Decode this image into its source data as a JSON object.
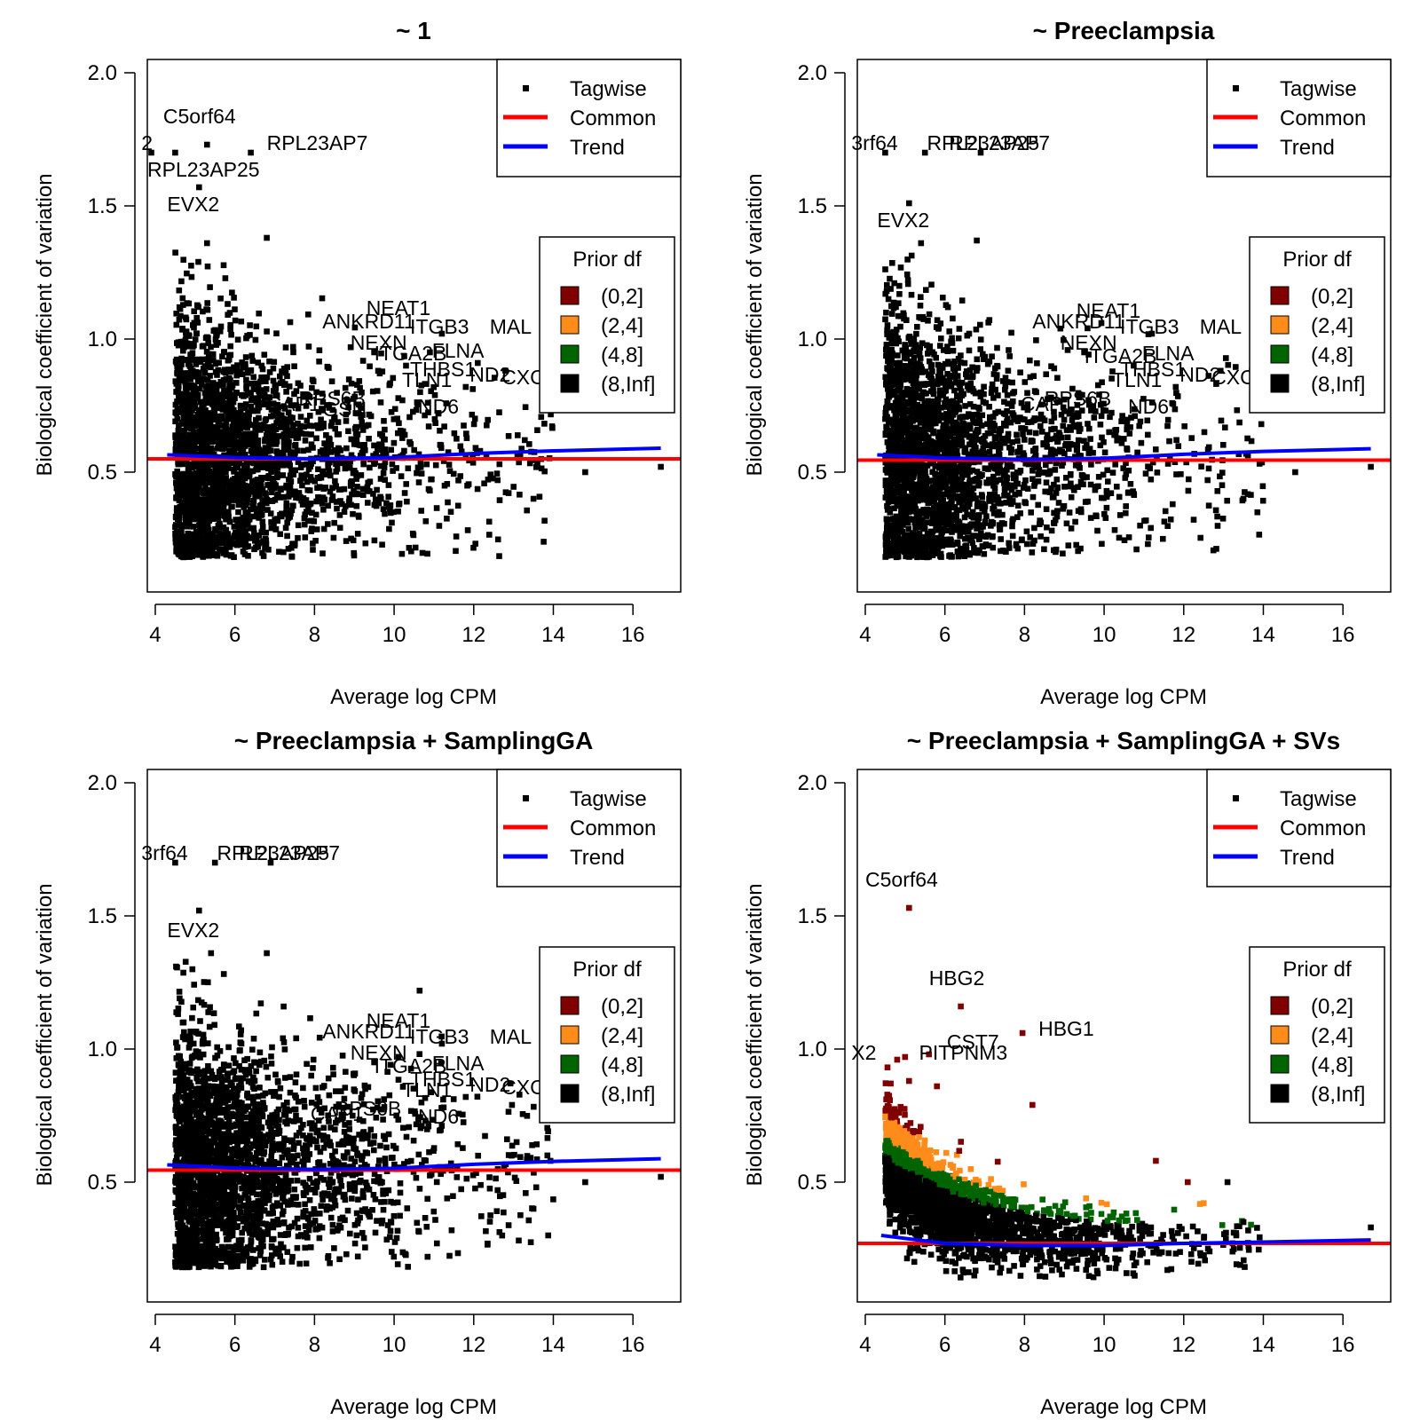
{
  "chart_data": [
    {
      "type": "scatter",
      "title": "~ 1",
      "xlabel": "Average log CPM",
      "ylabel": "Biological coefficient of variation",
      "xlim": [
        3.8,
        17.2
      ],
      "ylim": [
        0.05,
        2.05
      ],
      "xticks": [
        4,
        6,
        8,
        10,
        12,
        14,
        16
      ],
      "yticks": [
        0.5,
        1.0,
        1.5,
        2.0
      ],
      "ytick_labels": [
        "0.5",
        "1.0",
        "1.5",
        "2.0"
      ],
      "common": 0.55,
      "trend": [
        [
          4.3,
          0.565
        ],
        [
          6,
          0.555
        ],
        [
          8,
          0.55
        ],
        [
          10,
          0.555
        ],
        [
          12,
          0.57
        ],
        [
          14,
          0.58
        ],
        [
          16.7,
          0.59
        ]
      ],
      "tagwise_cloud": {
        "seed": 11,
        "mode": "early"
      },
      "outliers": [
        [
          5.3,
          1.73
        ],
        [
          4.5,
          1.7
        ],
        [
          6.4,
          1.7
        ],
        [
          3.9,
          1.7
        ],
        [
          5.1,
          1.57
        ],
        [
          5.3,
          1.36
        ],
        [
          6.8,
          1.38
        ],
        [
          9.5,
          0.95
        ],
        [
          10.3,
          0.9
        ],
        [
          11.2,
          1.02
        ],
        [
          10.9,
          0.95
        ],
        [
          11.8,
          0.82
        ],
        [
          12.1,
          0.91
        ],
        [
          14.8,
          0.5
        ],
        [
          16.7,
          0.52
        ],
        [
          13.5,
          0.4
        ],
        [
          12.6,
          0.47
        ]
      ],
      "gene_labels": [
        {
          "text": "C5orf64",
          "x": 4.2,
          "y": 1.81
        },
        {
          "text": "RPL23AP7",
          "x": 6.8,
          "y": 1.71
        },
        {
          "text": "RPL23AP25",
          "x": 3.8,
          "y": 1.61
        },
        {
          "text": "2",
          "x": 3.65,
          "y": 1.71
        },
        {
          "text": "EVX2",
          "x": 4.3,
          "y": 1.48
        },
        {
          "text": "NEAT1",
          "x": 9.3,
          "y": 1.09
        },
        {
          "text": "ANKRD11",
          "x": 8.2,
          "y": 1.04
        },
        {
          "text": "ITGB3",
          "x": 10.4,
          "y": 1.02
        },
        {
          "text": "MAL",
          "x": 12.4,
          "y": 1.02
        },
        {
          "text": "NEXN",
          "x": 8.9,
          "y": 0.96
        },
        {
          "text": "FLNA",
          "x": 10.95,
          "y": 0.93
        },
        {
          "text": "ITGA2B",
          "x": 9.5,
          "y": 0.92
        },
        {
          "text": "THBS1",
          "x": 10.4,
          "y": 0.86
        },
        {
          "text": "ND2",
          "x": 11.9,
          "y": 0.84
        },
        {
          "text": "TLN1",
          "x": 10.2,
          "y": 0.82
        },
        {
          "text": "CXCL",
          "x": 12.7,
          "y": 0.83
        },
        {
          "text": "RPS6B",
          "x": 7.6,
          "y": 0.75
        },
        {
          "text": "CAP1",
          "x": 6.8,
          "y": 0.73
        },
        {
          "text": "GSN",
          "x": 8.2,
          "y": 0.71
        },
        {
          "text": "ND6",
          "x": 10.6,
          "y": 0.72
        }
      ],
      "legend": {
        "entries": [
          "Tagwise",
          "Common",
          "Trend"
        ],
        "prior_title": "Prior df",
        "prior_entries": [
          "(0,2]",
          "(2,4]",
          "(4,8]",
          "(8,Inf]"
        ]
      }
    },
    {
      "type": "scatter",
      "title": "~ Preeclampsia",
      "xlabel": "Average log CPM",
      "ylabel": "Biological coefficient of variation",
      "xlim": [
        3.8,
        17.2
      ],
      "ylim": [
        0.05,
        2.05
      ],
      "xticks": [
        4,
        6,
        8,
        10,
        12,
        14,
        16
      ],
      "yticks": [
        0.5,
        1.0,
        1.5,
        2.0
      ],
      "ytick_labels": [
        "0.5",
        "1.0",
        "1.5",
        "2.0"
      ],
      "common": 0.545,
      "trend": [
        [
          4.3,
          0.565
        ],
        [
          6,
          0.553
        ],
        [
          8,
          0.548
        ],
        [
          10,
          0.552
        ],
        [
          12,
          0.567
        ],
        [
          14,
          0.578
        ],
        [
          16.7,
          0.588
        ]
      ],
      "tagwise_cloud": {
        "seed": 22,
        "mode": "early"
      },
      "outliers": [
        [
          4.5,
          1.7
        ],
        [
          5.5,
          1.7
        ],
        [
          6.9,
          1.7
        ],
        [
          5.1,
          1.51
        ],
        [
          5.4,
          1.36
        ],
        [
          6.8,
          1.37
        ],
        [
          9.5,
          0.95
        ],
        [
          11.2,
          1.02
        ],
        [
          11.8,
          0.82
        ],
        [
          14.8,
          0.5
        ],
        [
          16.7,
          0.52
        ],
        [
          13.5,
          0.4
        ],
        [
          12.6,
          0.47
        ]
      ],
      "gene_labels": [
        {
          "text": "3rf64",
          "x": 3.65,
          "y": 1.71
        },
        {
          "text": "RPL23AP25",
          "x": 5.55,
          "y": 1.71
        },
        {
          "text": "RPL23AP7",
          "x": 6.1,
          "y": 1.71
        },
        {
          "text": "EVX2",
          "x": 4.3,
          "y": 1.42
        },
        {
          "text": "NEAT1",
          "x": 9.3,
          "y": 1.08
        },
        {
          "text": "ANKRD11",
          "x": 8.2,
          "y": 1.04
        },
        {
          "text": "ITGB3",
          "x": 10.4,
          "y": 1.02
        },
        {
          "text": "MAL",
          "x": 12.4,
          "y": 1.02
        },
        {
          "text": "NEXN",
          "x": 8.9,
          "y": 0.96
        },
        {
          "text": "FLNA",
          "x": 10.95,
          "y": 0.92
        },
        {
          "text": "ITGA2B",
          "x": 9.5,
          "y": 0.91
        },
        {
          "text": "THBS1",
          "x": 10.4,
          "y": 0.86
        },
        {
          "text": "ND2",
          "x": 11.9,
          "y": 0.84
        },
        {
          "text": "TLN1",
          "x": 10.2,
          "y": 0.82
        },
        {
          "text": "CXCL",
          "x": 12.7,
          "y": 0.83
        },
        {
          "text": "RPS6B",
          "x": 8.5,
          "y": 0.75
        },
        {
          "text": "CAP1",
          "x": 7.9,
          "y": 0.73
        },
        {
          "text": "ND6",
          "x": 10.6,
          "y": 0.72
        }
      ],
      "legend": {
        "entries": [
          "Tagwise",
          "Common",
          "Trend"
        ],
        "prior_title": "Prior df",
        "prior_entries": [
          "(0,2]",
          "(2,4]",
          "(4,8]",
          "(8,Inf]"
        ]
      }
    },
    {
      "type": "scatter",
      "title": "~ Preeclampsia + SamplingGA",
      "xlabel": "Average log CPM",
      "ylabel": "Biological coefficient of variation",
      "xlim": [
        3.8,
        17.2
      ],
      "ylim": [
        0.05,
        2.05
      ],
      "xticks": [
        4,
        6,
        8,
        10,
        12,
        14,
        16
      ],
      "yticks": [
        0.5,
        1.0,
        1.5,
        2.0
      ],
      "ytick_labels": [
        "0.5",
        "1.0",
        "1.5",
        "2.0"
      ],
      "common": 0.545,
      "trend": [
        [
          4.3,
          0.565
        ],
        [
          6,
          0.553
        ],
        [
          8,
          0.548
        ],
        [
          10,
          0.552
        ],
        [
          12,
          0.567
        ],
        [
          14,
          0.578
        ],
        [
          16.7,
          0.588
        ]
      ],
      "tagwise_cloud": {
        "seed": 33,
        "mode": "early"
      },
      "outliers": [
        [
          4.5,
          1.7
        ],
        [
          5.5,
          1.7
        ],
        [
          6.9,
          1.7
        ],
        [
          5.1,
          1.52
        ],
        [
          5.4,
          1.36
        ],
        [
          6.8,
          1.36
        ],
        [
          9.5,
          0.95
        ],
        [
          11.2,
          1.02
        ],
        [
          11.8,
          0.82
        ],
        [
          14.8,
          0.5
        ],
        [
          16.7,
          0.52
        ],
        [
          13.5,
          0.4
        ],
        [
          12.6,
          0.47
        ]
      ],
      "gene_labels": [
        {
          "text": "3rf64",
          "x": 3.65,
          "y": 1.71
        },
        {
          "text": "RPL23AP25",
          "x": 5.55,
          "y": 1.71
        },
        {
          "text": "RPL23AP7",
          "x": 6.1,
          "y": 1.71
        },
        {
          "text": "EVX2",
          "x": 4.3,
          "y": 1.42
        },
        {
          "text": "NEAT1",
          "x": 9.3,
          "y": 1.08
        },
        {
          "text": "ANKRD11",
          "x": 8.2,
          "y": 1.04
        },
        {
          "text": "ITGB3",
          "x": 10.4,
          "y": 1.02
        },
        {
          "text": "MAL",
          "x": 12.4,
          "y": 1.02
        },
        {
          "text": "NEXN",
          "x": 8.9,
          "y": 0.96
        },
        {
          "text": "FLNA",
          "x": 10.95,
          "y": 0.92
        },
        {
          "text": "ITGA2B",
          "x": 9.5,
          "y": 0.91
        },
        {
          "text": "THBS1",
          "x": 10.4,
          "y": 0.86
        },
        {
          "text": "ND2",
          "x": 11.9,
          "y": 0.84
        },
        {
          "text": "TLN1",
          "x": 10.2,
          "y": 0.82
        },
        {
          "text": "CXCL",
          "x": 12.7,
          "y": 0.83
        },
        {
          "text": "RPS6B",
          "x": 8.5,
          "y": 0.75
        },
        {
          "text": "CAP1",
          "x": 7.9,
          "y": 0.73
        },
        {
          "text": "ND6",
          "x": 10.6,
          "y": 0.72
        }
      ],
      "legend": {
        "entries": [
          "Tagwise",
          "Common",
          "Trend"
        ],
        "prior_title": "Prior df",
        "prior_entries": [
          "(0,2]",
          "(2,4]",
          "(4,8]",
          "(8,Inf]"
        ]
      }
    },
    {
      "type": "scatter",
      "title": "~ Preeclampsia + SamplingGA + SVs",
      "xlabel": "Average log CPM",
      "ylabel": "Biological coefficient of variation",
      "xlim": [
        3.8,
        17.2
      ],
      "ylim": [
        0.05,
        2.05
      ],
      "xticks": [
        4,
        6,
        8,
        10,
        12,
        14,
        16
      ],
      "yticks": [
        0.5,
        1.0,
        1.5,
        2.0
      ],
      "ytick_labels": [
        "0.5",
        "1.0",
        "1.5",
        "2.0"
      ],
      "common": 0.27,
      "trend": [
        [
          4.4,
          0.3
        ],
        [
          6,
          0.27
        ],
        [
          8,
          0.262
        ],
        [
          10,
          0.262
        ],
        [
          12,
          0.27
        ],
        [
          14,
          0.275
        ],
        [
          16.7,
          0.283
        ]
      ],
      "tagwise_cloud": {
        "seed": 44,
        "mode": "svs"
      },
      "outliers": [
        [
          5.1,
          1.53
        ],
        [
          6.4,
          1.16
        ],
        [
          7.95,
          1.06
        ],
        [
          5.6,
          0.98
        ],
        [
          4.8,
          0.96
        ],
        [
          5.0,
          0.97
        ],
        [
          5.1,
          0.88
        ],
        [
          5.8,
          0.86
        ],
        [
          8.2,
          0.79
        ],
        [
          13.5,
          0.35
        ],
        [
          16.7,
          0.33
        ],
        [
          12.1,
          0.5
        ],
        [
          13.1,
          0.5
        ],
        [
          11.3,
          0.58
        ]
      ],
      "gene_labels": [
        {
          "text": "C5orf64",
          "x": 4.0,
          "y": 1.61
        },
        {
          "text": "HBG2",
          "x": 5.6,
          "y": 1.24
        },
        {
          "text": "HBG1",
          "x": 8.35,
          "y": 1.05
        },
        {
          "text": "CST7",
          "x": 6.05,
          "y": 1.0
        },
        {
          "text": "PITPNM3",
          "x": 5.35,
          "y": 0.96
        },
        {
          "text": "X2",
          "x": 3.65,
          "y": 0.96
        }
      ],
      "legend": {
        "entries": [
          "Tagwise",
          "Common",
          "Trend"
        ],
        "prior_title": "Prior df",
        "prior_entries": [
          "(0,2]",
          "(2,4]",
          "(4,8]",
          "(8,Inf]"
        ]
      }
    }
  ],
  "colors": {
    "tagwise": "#000000",
    "common": "#ff0000",
    "trend": "#0000ff",
    "prior_0_2": "#800000",
    "prior_2_4": "#ff8c1a",
    "prior_4_8": "#006400",
    "prior_8_inf": "#000000"
  }
}
